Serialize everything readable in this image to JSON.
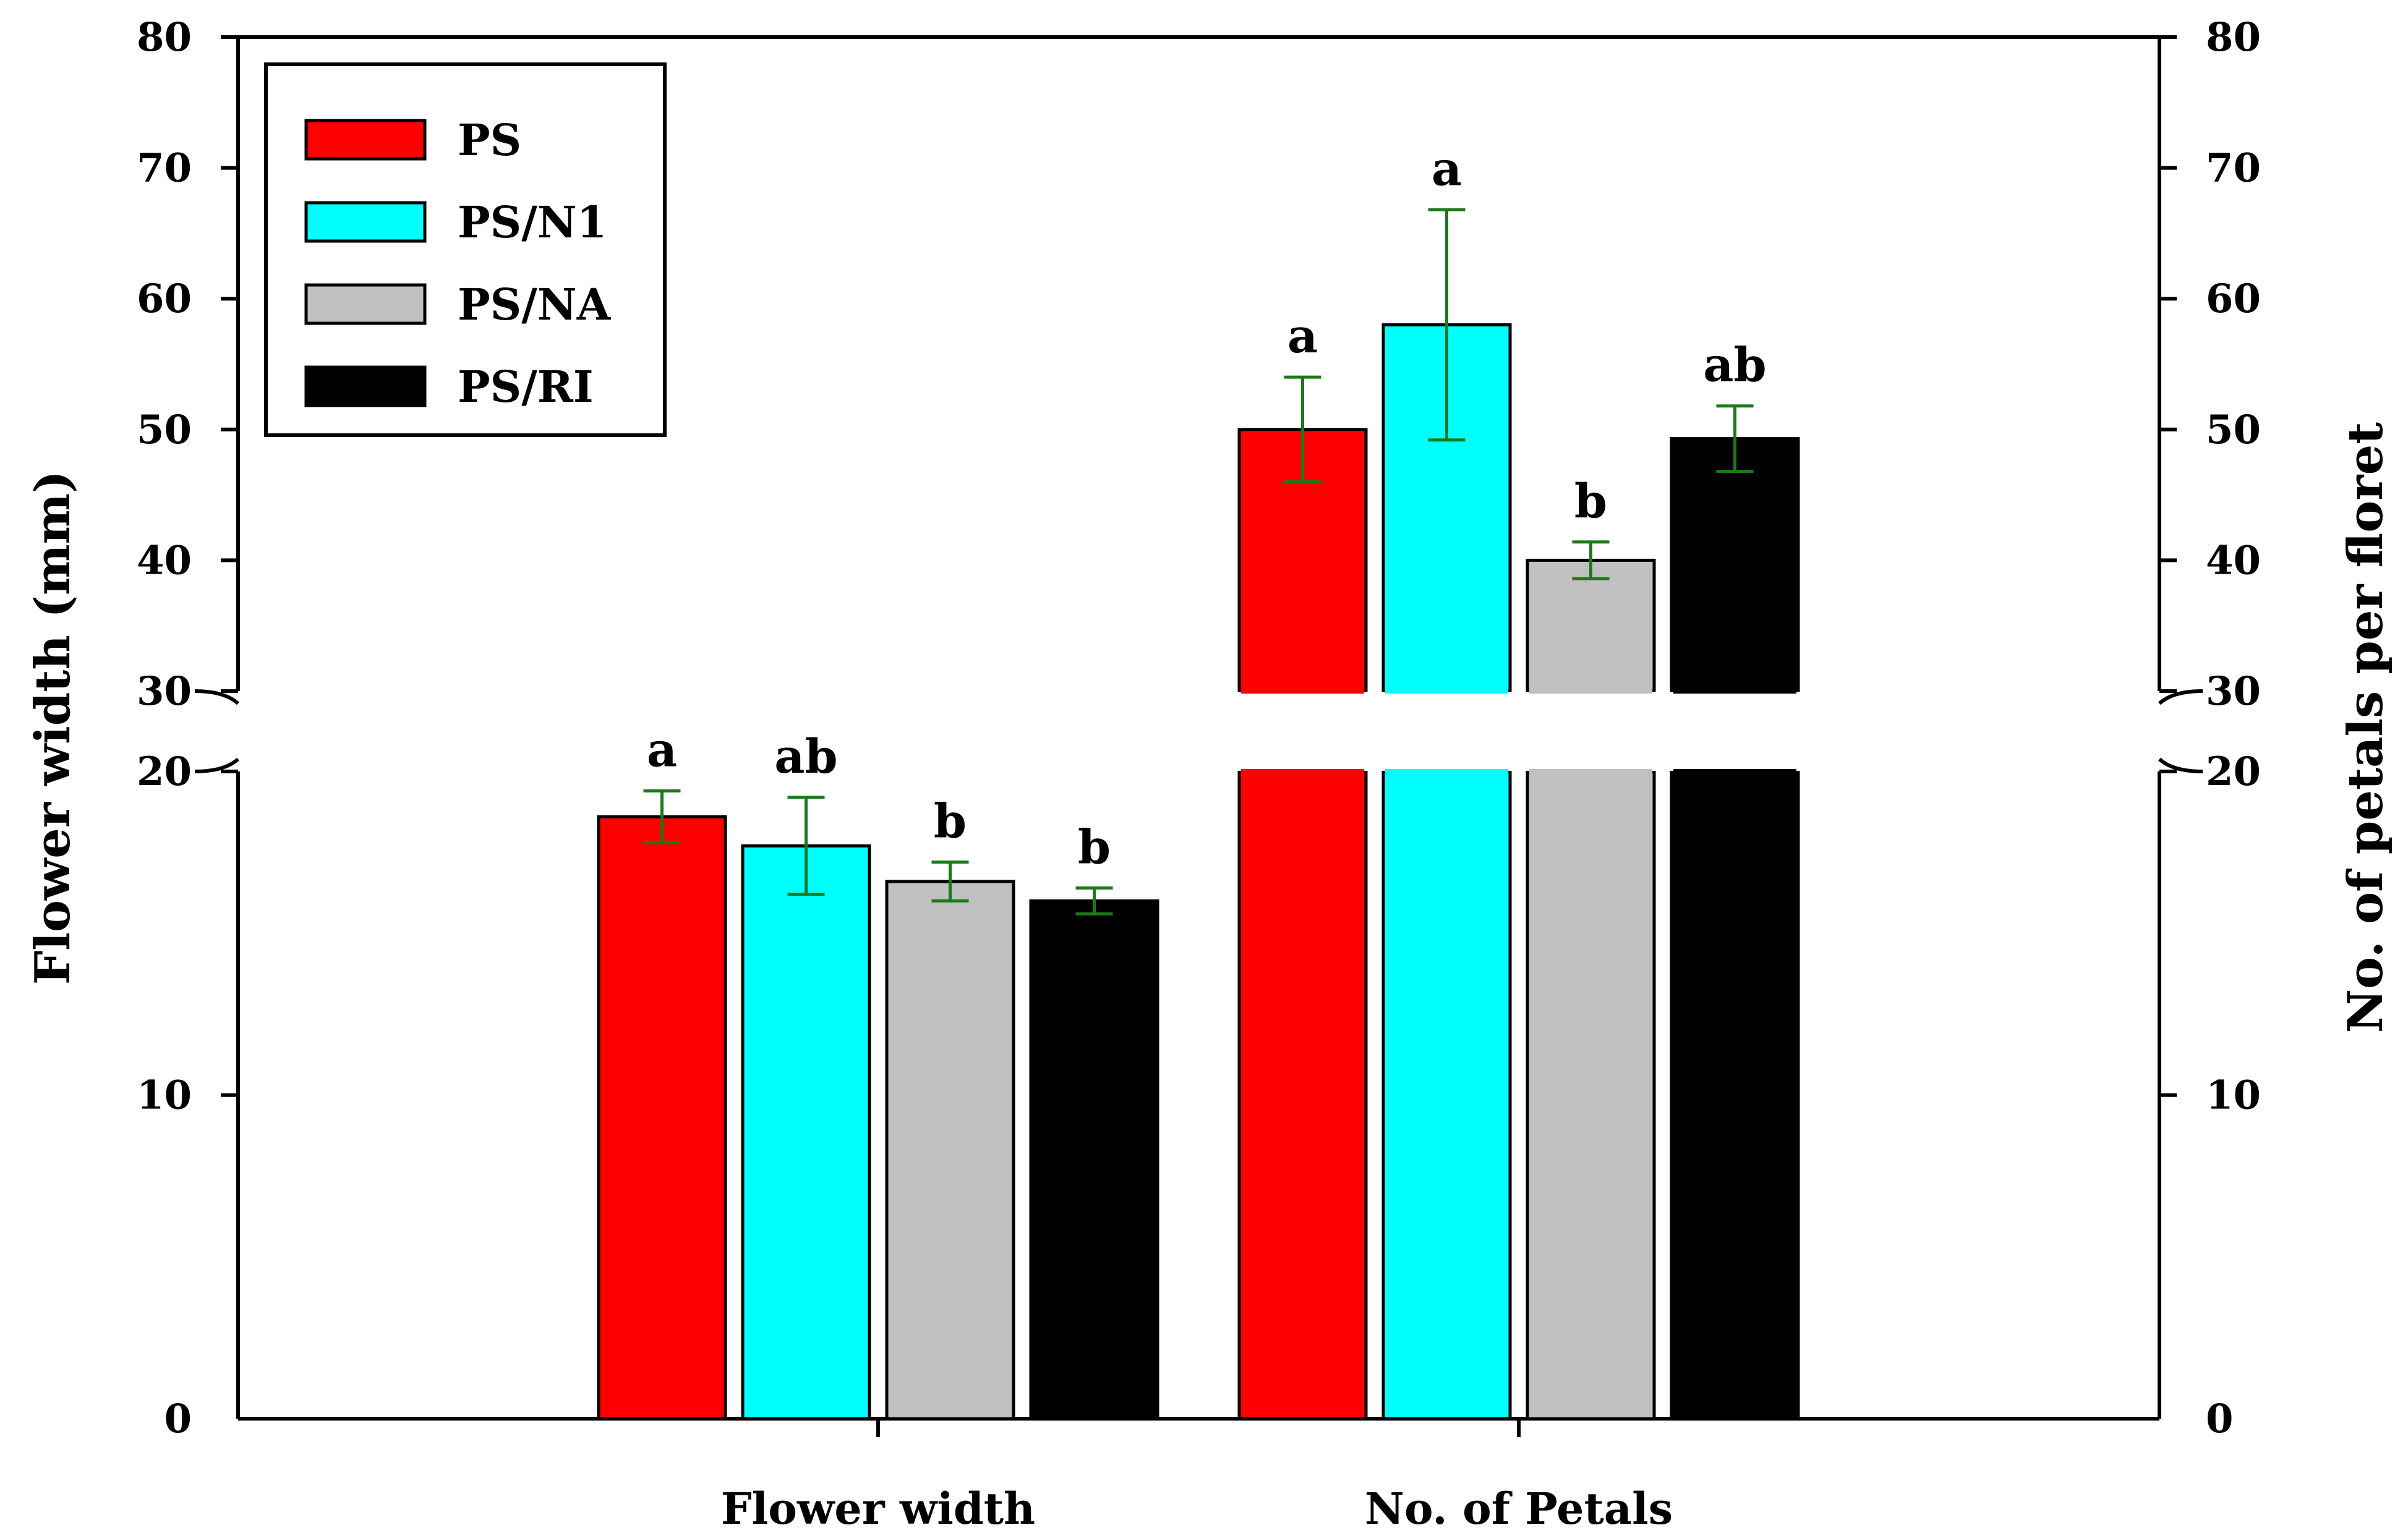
{
  "chart_data": {
    "type": "bar",
    "categories": [
      "Flower width",
      "No. of Petals"
    ],
    "series": [
      {
        "name": "PS",
        "color": "#ff0000",
        "values": [
          18.6,
          50.0
        ],
        "errors": [
          0.8,
          4.0
        ],
        "significance": [
          "a",
          "a"
        ]
      },
      {
        "name": "PS/N1",
        "color": "#00ffff",
        "values": [
          17.7,
          58.0
        ],
        "errors": [
          1.5,
          8.8
        ],
        "significance": [
          "ab",
          "a"
        ]
      },
      {
        "name": "PS/NA",
        "color": "#c0c0c0",
        "values": [
          16.6,
          40.0
        ],
        "errors": [
          0.6,
          1.4
        ],
        "significance": [
          "b",
          "b"
        ]
      },
      {
        "name": "PS/RI",
        "color": "#000000",
        "values": [
          16.0,
          49.3
        ],
        "errors": [
          0.4,
          2.5
        ],
        "significance": [
          "b",
          "ab"
        ]
      }
    ],
    "ylabel_left": "Flower width (mm)",
    "ylabel_right": "No. of petals per floret",
    "ylim": [
      0,
      80
    ],
    "axis_break": [
      20,
      30
    ],
    "left_ticks": [
      "0",
      "10",
      "20",
      "30",
      "40",
      "50",
      "60",
      "70",
      "80"
    ],
    "right_ticks": [
      "0",
      "10",
      "20",
      "30",
      "40",
      "50",
      "60",
      "70",
      "80"
    ],
    "error_bar_color": "#1a7a1a",
    "legend_position": "top-left",
    "grid": false
  }
}
